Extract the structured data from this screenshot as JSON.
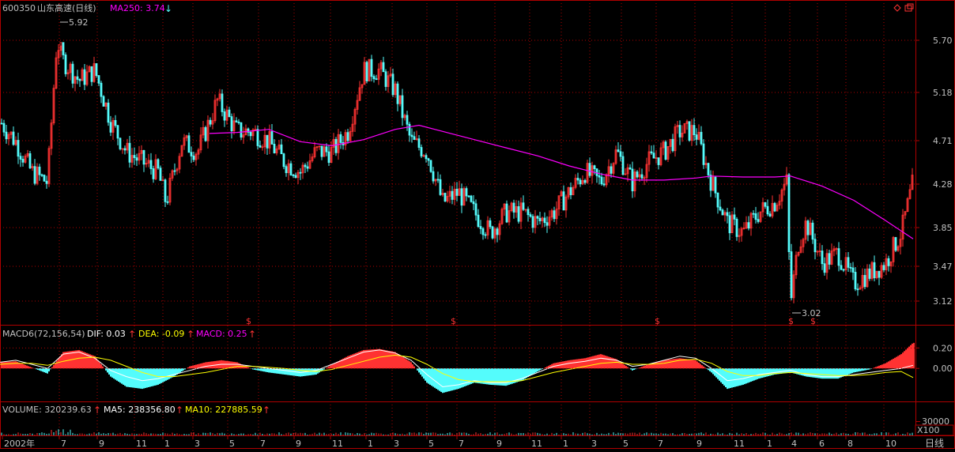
{
  "header": {
    "code": "600350",
    "name": "山东高速(日线)",
    "ma_label": "MA250: 3.74",
    "ma_arrow": "↓"
  },
  "price_panel": {
    "max_marker": "5.92",
    "min_marker": "3.02",
    "dollar_marker": "$"
  },
  "macd_panel": {
    "title": "MACD6(72,156,54)",
    "dif_label": "DIF: 0.03",
    "dea_label": "DEA: -0.09",
    "macd_label": "MACD: 0.25",
    "arrow": "↑"
  },
  "volume_panel": {
    "volume_label": "VOLUME: 320239.63",
    "ma5_label": "MA5: 238356.80",
    "ma10_label": "MA10: 227885.59",
    "arrow": "↑",
    "tick": "30000",
    "unit": "X100"
  },
  "footer": {
    "period_button": "日线"
  },
  "colors": {
    "up": "#ff3232",
    "down": "#54fcfc",
    "ma250": "#ff00ff",
    "dea": "#ffff00",
    "axis": "#b00000",
    "label": "#c0c0c0"
  },
  "chart_data": [
    {
      "type": "candlestick",
      "name": "price",
      "y_ticks": [
        "5.70",
        "5.18",
        "4.71",
        "4.28",
        "3.85",
        "3.47",
        "3.12"
      ],
      "x_ticks": [
        "2002年",
        "7",
        "9",
        "11",
        "1",
        "3",
        "5",
        "7",
        "9",
        "11",
        "1",
        "3",
        "5",
        "7",
        "9",
        "11",
        "1",
        "3",
        "5",
        "7",
        "9",
        "11",
        "1",
        "4",
        "6",
        "8",
        "10"
      ],
      "ylim": [
        2.95,
        6.0
      ],
      "x": [
        0,
        20,
        40,
        60,
        72,
        80,
        100,
        120,
        140,
        160,
        180,
        200,
        210,
        230,
        250,
        275,
        300,
        320,
        340,
        360,
        380,
        400,
        420,
        440,
        460,
        480,
        500,
        520,
        540,
        560,
        580,
        600,
        620,
        640,
        660,
        680,
        700,
        720,
        740,
        760,
        780,
        800,
        820,
        840,
        860,
        880,
        900,
        920,
        940,
        960,
        980,
        995,
        1000,
        1010,
        1020,
        1040,
        1060,
        1080,
        1100,
        1120,
        1140,
        1155
      ],
      "close": [
        4.9,
        4.7,
        4.4,
        4.3,
        5.7,
        5.5,
        5.3,
        5.4,
        4.9,
        4.6,
        4.5,
        4.4,
        4.1,
        4.7,
        4.6,
        5.1,
        4.8,
        4.8,
        4.7,
        4.5,
        4.4,
        4.6,
        4.6,
        4.8,
        5.4,
        5.4,
        5.2,
        4.7,
        4.6,
        4.1,
        4.2,
        4.0,
        3.8,
        4.0,
        4.0,
        3.9,
        4.0,
        4.2,
        4.4,
        4.3,
        4.6,
        4.3,
        4.5,
        4.6,
        4.8,
        4.8,
        4.3,
        3.9,
        3.8,
        4.0,
        4.1,
        4.3,
        3.1,
        3.7,
        3.9,
        3.5,
        3.6,
        3.3,
        3.4,
        3.5,
        3.8,
        4.3
      ],
      "ma250": {
        "x": [
          265,
          300,
          340,
          380,
          420,
          460,
          500,
          530,
          560,
          600,
          640,
          680,
          720,
          760,
          800,
          840,
          880,
          900,
          940,
          980,
          1000,
          1040,
          1080,
          1120,
          1155
        ],
        "values": [
          4.78,
          4.79,
          4.82,
          4.7,
          4.66,
          4.72,
          4.82,
          4.86,
          4.8,
          4.72,
          4.64,
          4.56,
          4.46,
          4.38,
          4.32,
          4.32,
          4.34,
          4.36,
          4.35,
          4.35,
          4.36,
          4.26,
          4.12,
          3.92,
          3.74
        ]
      }
    },
    {
      "type": "bar",
      "name": "macd",
      "y_ticks": [
        "0.20",
        "0.00"
      ],
      "ylim": [
        -0.3,
        0.28
      ],
      "x": [
        0,
        20,
        40,
        60,
        80,
        100,
        120,
        140,
        160,
        180,
        200,
        220,
        240,
        260,
        280,
        300,
        320,
        340,
        360,
        380,
        400,
        420,
        440,
        460,
        480,
        500,
        520,
        540,
        560,
        580,
        600,
        620,
        640,
        660,
        680,
        700,
        720,
        740,
        760,
        780,
        800,
        820,
        840,
        860,
        880,
        900,
        920,
        940,
        960,
        980,
        1000,
        1020,
        1040,
        1060,
        1080,
        1100,
        1120,
        1140,
        1155
      ],
      "macd": [
        0.06,
        0.07,
        0.01,
        -0.05,
        0.16,
        0.18,
        0.12,
        -0.08,
        -0.18,
        -0.2,
        -0.16,
        -0.08,
        0.02,
        0.06,
        0.08,
        0.06,
        -0.01,
        -0.04,
        -0.06,
        -0.08,
        -0.06,
        0.04,
        0.12,
        0.18,
        0.19,
        0.16,
        0.06,
        -0.14,
        -0.24,
        -0.2,
        -0.14,
        -0.16,
        -0.17,
        -0.12,
        -0.03,
        0.05,
        0.08,
        0.1,
        0.14,
        0.09,
        -0.02,
        0.04,
        0.08,
        0.1,
        0.08,
        -0.04,
        -0.2,
        -0.16,
        -0.1,
        -0.06,
        -0.04,
        -0.08,
        -0.1,
        -0.1,
        -0.04,
        -0.01,
        0.05,
        0.14,
        0.25
      ],
      "dif": [
        0.06,
        0.08,
        0.04,
        0.0,
        0.14,
        0.16,
        0.1,
        -0.02,
        -0.08,
        -0.12,
        -0.1,
        -0.06,
        -0.02,
        0.02,
        0.04,
        0.04,
        0.02,
        0.0,
        -0.02,
        -0.04,
        -0.02,
        0.04,
        0.1,
        0.16,
        0.18,
        0.15,
        0.08,
        -0.06,
        -0.18,
        -0.16,
        -0.12,
        -0.14,
        -0.14,
        -0.1,
        -0.04,
        0.02,
        0.05,
        0.07,
        0.1,
        0.08,
        0.02,
        0.04,
        0.08,
        0.12,
        0.1,
        0.0,
        -0.12,
        -0.1,
        -0.06,
        -0.04,
        -0.02,
        -0.06,
        -0.08,
        -0.08,
        -0.06,
        -0.04,
        -0.02,
        0.0,
        0.03
      ],
      "dea": [
        0.04,
        0.05,
        0.05,
        0.03,
        0.07,
        0.1,
        0.11,
        0.08,
        0.02,
        -0.04,
        -0.08,
        -0.08,
        -0.06,
        -0.04,
        -0.01,
        0.02,
        0.02,
        0.01,
        0.0,
        -0.02,
        -0.03,
        -0.01,
        0.03,
        0.07,
        0.11,
        0.13,
        0.11,
        0.04,
        -0.05,
        -0.11,
        -0.13,
        -0.13,
        -0.13,
        -0.12,
        -0.08,
        -0.04,
        -0.01,
        0.02,
        0.05,
        0.06,
        0.04,
        0.04,
        0.05,
        0.08,
        0.09,
        0.05,
        -0.03,
        -0.07,
        -0.07,
        -0.05,
        -0.04,
        -0.05,
        -0.06,
        -0.07,
        -0.07,
        -0.06,
        -0.04,
        -0.03,
        -0.09
      ]
    }
  ]
}
